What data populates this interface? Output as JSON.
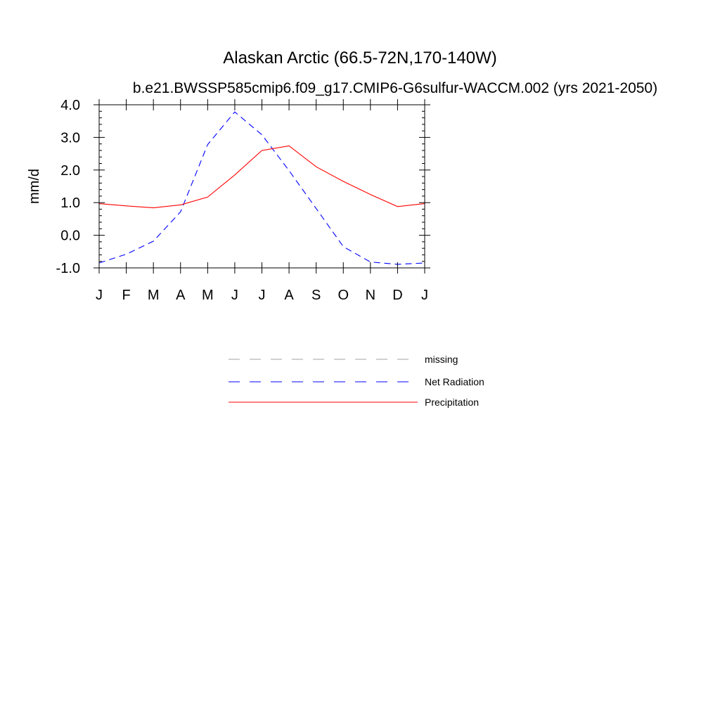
{
  "chart_data": {
    "type": "line",
    "title": "Alaskan Arctic (66.5-72N,170-140W)",
    "subtitle": "b.e21.BWSSP585cmip6.f09_g17.CMIP6-G6sulfur-WACCM.002 (yrs 2021-2050)",
    "xlabel": "",
    "ylabel": "mm/d",
    "x_tick_labels": [
      "J",
      "F",
      "M",
      "A",
      "M",
      "J",
      "J",
      "A",
      "S",
      "O",
      "N",
      "D",
      "J"
    ],
    "y_tick_labels": [
      "-1.0",
      "0.0",
      "1.0",
      "2.0",
      "3.0",
      "4.0"
    ],
    "ylim": [
      -1.0,
      4.0
    ],
    "xlim": [
      0,
      12
    ],
    "grid": false,
    "legend_position": "bottom-center",
    "legend": [
      {
        "label": "missing",
        "color": "#a0a0a0",
        "style": "dashed"
      },
      {
        "label": "Net Radiation",
        "color": "#0000ff",
        "style": "dashed"
      },
      {
        "label": "Precipitation",
        "color": "#ff0000",
        "style": "solid"
      }
    ],
    "series": [
      {
        "name": "Net Radiation",
        "color": "#0000ff",
        "style": "dashed",
        "values": [
          -0.85,
          -0.58,
          -0.18,
          0.72,
          2.78,
          3.78,
          3.08,
          1.98,
          0.82,
          -0.35,
          -0.82,
          -0.89,
          -0.85
        ]
      },
      {
        "name": "Precipitation",
        "color": "#ff0000",
        "style": "solid",
        "values": [
          0.97,
          0.9,
          0.84,
          0.93,
          1.17,
          1.85,
          2.6,
          2.74,
          2.1,
          1.65,
          1.25,
          0.88,
          0.97
        ]
      }
    ]
  }
}
